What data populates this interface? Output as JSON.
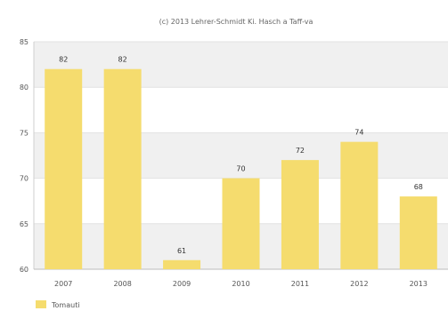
{
  "chart_data": {
    "type": "bar",
    "subtitle": "(c) 2013 Lehrer-Schmidt Ki. Hasch a Taff-va",
    "categories": [
      "2007",
      "2008",
      "2009",
      "2010",
      "2011",
      "2012",
      "2013"
    ],
    "series": [
      {
        "name": "Tomauti",
        "values": [
          82,
          82,
          61,
          70,
          72,
          74,
          68
        ],
        "color": "#f5dc6e"
      }
    ],
    "ylim": [
      60,
      85
    ],
    "yticks": [
      60,
      65,
      70,
      75,
      80,
      85
    ],
    "grid": true,
    "legend_position": "bottom-left",
    "band_color": "#f0f0f0"
  }
}
